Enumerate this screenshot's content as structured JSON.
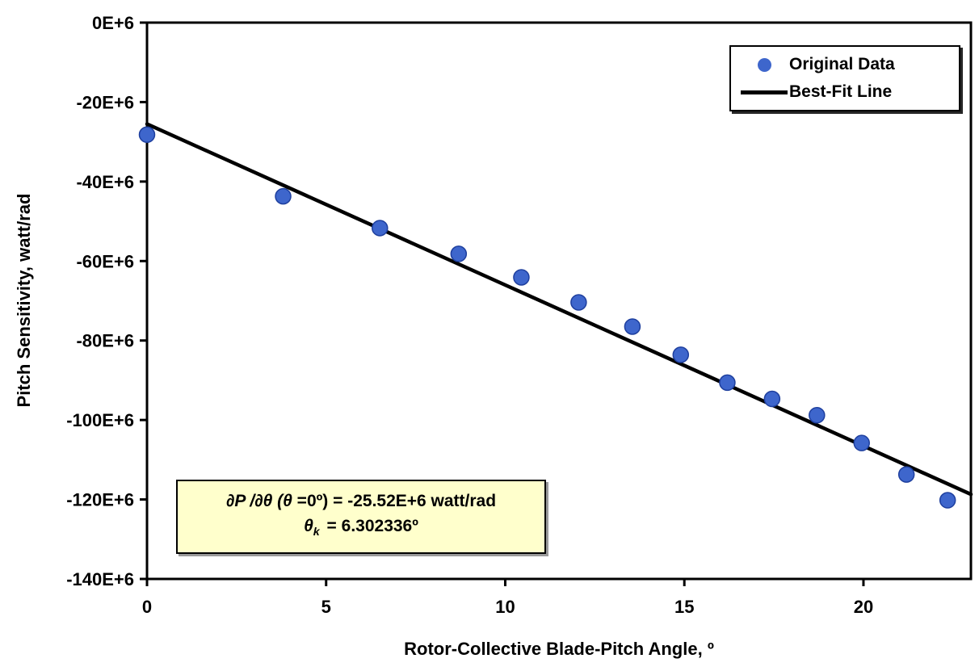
{
  "chart_data": {
    "type": "scatter",
    "title": "",
    "xlabel": "Rotor-Collective Blade-Pitch Angle, º",
    "ylabel": "Pitch Sensitivity, watt/rad",
    "xlim": [
      0,
      23
    ],
    "ylim": [
      -140,
      0
    ],
    "grid": false,
    "legend_position": "top-right",
    "y_unit_note": "y values in E+6 watt/rad",
    "x_ticks": {
      "values": [
        0,
        5,
        10,
        15,
        20
      ],
      "labels": [
        "0",
        "5",
        "10",
        "15",
        "20"
      ]
    },
    "y_ticks": {
      "values": [
        0,
        -20,
        -40,
        -60,
        -80,
        -100,
        -120,
        -140
      ],
      "labels": [
        "0E+6",
        "-20E+6",
        "-40E+6",
        "-60E+6",
        "-80E+6",
        "-100E+6",
        "-120E+6",
        "-140E+6"
      ]
    },
    "series": [
      {
        "name": "Original Data",
        "type": "scatter",
        "color": "#3e66cc",
        "edge_color": "#1e3f9e",
        "x": [
          0,
          3.8,
          6.5,
          8.7,
          10.45,
          12.05,
          13.55,
          14.9,
          16.2,
          17.45,
          18.7,
          19.95,
          21.2,
          22.35
        ],
        "y": [
          -28.2,
          -43.7,
          -51.7,
          -58.2,
          -64.1,
          -70.4,
          -76.5,
          -83.6,
          -90.6,
          -94.7,
          -98.8,
          -105.8,
          -113.7,
          -120.2
        ]
      },
      {
        "name": "Best-Fit Line",
        "type": "line",
        "color": "#000000",
        "x": [
          0,
          23
        ],
        "y": [
          -25.52,
          -118.7
        ]
      }
    ]
  },
  "legend": {
    "items": [
      {
        "label": "Original Data",
        "marker": "dot",
        "color": "#3e66cc"
      },
      {
        "label": "Best-Fit Line",
        "marker": "line",
        "color": "#000000"
      }
    ]
  },
  "annotation": {
    "line1": {
      "math": "∂P /∂θ (θ",
      "text": " =0º) = -25.52E+6 watt/rad"
    },
    "line2": {
      "symbol": "θ",
      "subscript": "k",
      "text": " = 6.302336º"
    }
  },
  "colors": {
    "marker": "#3e66cc",
    "marker_edge": "#1e3f9e",
    "fit_line": "#000000",
    "annotation_bg": "#ffffcc",
    "frame": "#000000"
  }
}
